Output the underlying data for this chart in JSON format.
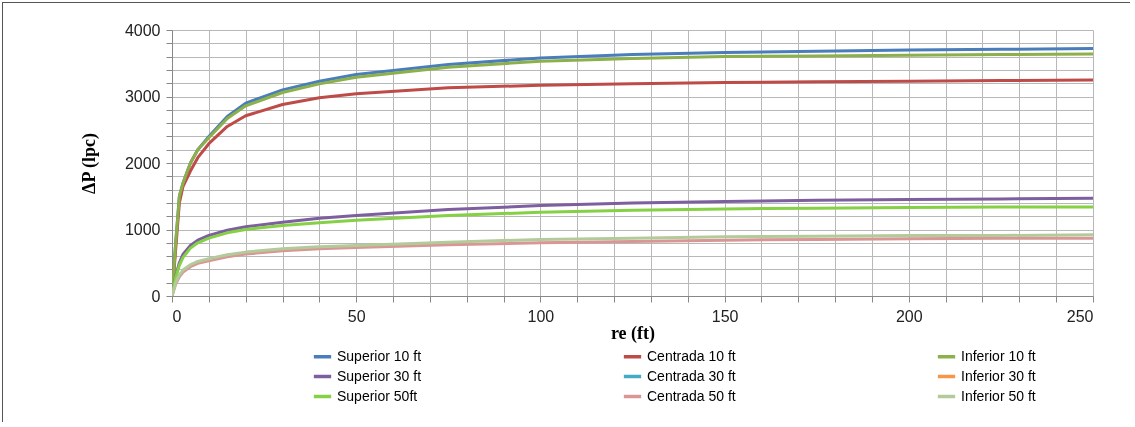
{
  "chart_data": {
    "type": "line",
    "xlabel": "re (ft)",
    "ylabel": "ΔP (lpc)",
    "x": [
      0,
      1,
      2,
      3,
      5,
      7,
      10,
      15,
      20,
      30,
      40,
      50,
      75,
      100,
      125,
      150,
      175,
      200,
      225,
      250
    ],
    "xlim": [
      0,
      250
    ],
    "ylim": [
      0,
      4000
    ],
    "xticks": [
      0,
      {
        "value": 10,
        "label": null
      },
      {
        "value": 20,
        "label": null
      },
      {
        "value": 30,
        "label": null
      },
      {
        "value": 40,
        "label": null
      },
      50,
      {
        "value": 60,
        "label": null
      },
      {
        "value": 70,
        "label": null
      },
      {
        "value": 80,
        "label": null
      },
      {
        "value": 90,
        "label": null
      },
      100,
      {
        "value": 110,
        "label": null
      },
      {
        "value": 120,
        "label": null
      },
      {
        "value": 130,
        "label": null
      },
      {
        "value": 140,
        "label": null
      },
      150,
      {
        "value": 160,
        "label": null
      },
      {
        "value": 170,
        "label": null
      },
      {
        "value": 180,
        "label": null
      },
      {
        "value": 190,
        "label": null
      },
      200,
      {
        "value": 210,
        "label": null
      },
      {
        "value": 220,
        "label": null
      },
      {
        "value": 230,
        "label": null
      },
      {
        "value": 240,
        "label": null
      },
      250
    ],
    "yticks": [
      0,
      {
        "value": 200,
        "label": null
      },
      {
        "value": 400,
        "label": null
      },
      {
        "value": 600,
        "label": null
      },
      {
        "value": 800,
        "label": null
      },
      1000,
      {
        "value": 1200,
        "label": null
      },
      {
        "value": 1400,
        "label": null
      },
      {
        "value": 1600,
        "label": null
      },
      {
        "value": 1800,
        "label": null
      },
      2000,
      {
        "value": 2200,
        "label": null
      },
      {
        "value": 2400,
        "label": null
      },
      {
        "value": 2600,
        "label": null
      },
      {
        "value": 2800,
        "label": null
      },
      3000,
      {
        "value": 3200,
        "label": null
      },
      {
        "value": 3400,
        "label": null
      },
      {
        "value": 3600,
        "label": null
      },
      {
        "value": 3800,
        "label": null
      },
      4000
    ],
    "grid": true,
    "legend": "bottom",
    "marker": "none",
    "line_style": "solid",
    "series": [
      {
        "name": "Superior 10 ft",
        "color": "#4a7ebb",
        "values": [
          0,
          800,
          1500,
          1700,
          2000,
          2200,
          2400,
          2700,
          2900,
          3100,
          3230,
          3330,
          3480,
          3580,
          3630,
          3660,
          3680,
          3700,
          3710,
          3720
        ]
      },
      {
        "name": "Centrada 10 ft",
        "color": "#be4b48",
        "values": [
          0,
          700,
          1400,
          1650,
          1880,
          2080,
          2290,
          2550,
          2710,
          2880,
          2980,
          3040,
          3130,
          3170,
          3190,
          3210,
          3220,
          3230,
          3240,
          3250
        ]
      },
      {
        "name": "Inferior 10 ft",
        "color": "#8cb04a",
        "values": [
          0,
          800,
          1500,
          1700,
          2000,
          2200,
          2380,
          2670,
          2860,
          3060,
          3190,
          3290,
          3440,
          3530,
          3570,
          3600,
          3610,
          3620,
          3630,
          3640
        ]
      },
      {
        "name": "Superior 30 ft",
        "color": "#7d5fa0",
        "values": [
          0,
          300,
          500,
          630,
          760,
          840,
          910,
          990,
          1040,
          1110,
          1170,
          1210,
          1300,
          1360,
          1400,
          1420,
          1440,
          1450,
          1460,
          1470
        ]
      },
      {
        "name": "Centrada 30 ft",
        "color": "#46aac5",
        "values": [
          null,
          null,
          null,
          null,
          null,
          null,
          null,
          null,
          null,
          null,
          null,
          null,
          null,
          null,
          null,
          null,
          null,
          null,
          null,
          null
        ]
      },
      {
        "name": "Inferior 30 ft",
        "color": "#f79646",
        "values": [
          null,
          null,
          null,
          null,
          null,
          null,
          null,
          null,
          null,
          null,
          null,
          null,
          null,
          null,
          null,
          null,
          null,
          null,
          null,
          null
        ]
      },
      {
        "name": "Superior 50ft",
        "color": "#86d046",
        "values": [
          0,
          280,
          460,
          580,
          720,
          800,
          870,
          950,
          1000,
          1060,
          1100,
          1140,
          1210,
          1260,
          1290,
          1310,
          1320,
          1330,
          1340,
          1340
        ]
      },
      {
        "name": "Centrada 50 ft",
        "color": "#d99694",
        "values": [
          0,
          180,
          290,
          360,
          440,
          490,
          530,
          590,
          630,
          680,
          710,
          730,
          770,
          800,
          820,
          840,
          850,
          860,
          870,
          870
        ]
      },
      {
        "name": "Inferior 50 ft",
        "color": "#b3cb9a",
        "values": [
          0,
          200,
          320,
          390,
          470,
          520,
          560,
          620,
          660,
          710,
          740,
          760,
          810,
          850,
          870,
          890,
          900,
          910,
          910,
          920
        ]
      }
    ]
  }
}
